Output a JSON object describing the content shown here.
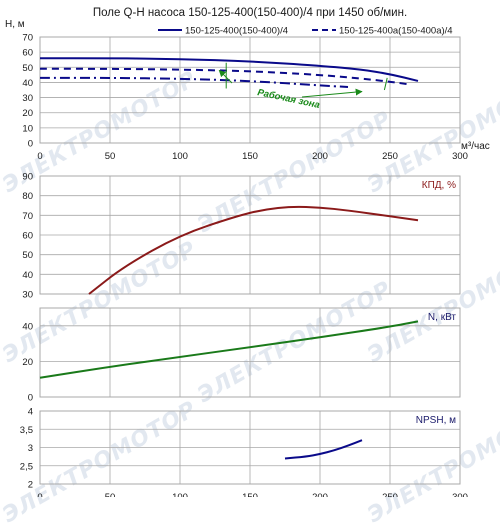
{
  "watermark": "ЭЛЕКТРОМОТОР",
  "chart_data": [
    {
      "type": "line",
      "title": "Поле Q-H насоса 150-125-400(150-400)/4 при 1450 об/мин.",
      "ylabel": "H, м",
      "xlabel": "м³/час",
      "xlim": [
        0,
        300
      ],
      "ylim": [
        0,
        70
      ],
      "xticks": [
        0,
        50,
        100,
        150,
        200,
        250,
        300
      ],
      "yticks": [
        0,
        10,
        20,
        30,
        40,
        50,
        60,
        70
      ],
      "grid": true,
      "legend_position": "top",
      "series": [
        {
          "name": "150-125-400(150-400)/4",
          "style": "solid",
          "color": "#0a0a8a",
          "x": [
            0,
            50,
            100,
            150,
            200,
            230,
            250,
            270
          ],
          "y": [
            56,
            56,
            55.5,
            54,
            51,
            48.5,
            45.5,
            41
          ]
        },
        {
          "name": "150-125-400a(150-400a)/4",
          "style": "dashed",
          "color": "#0a0a8a",
          "x": [
            0,
            50,
            100,
            150,
            200,
            230,
            250,
            265
          ],
          "y": [
            49,
            49,
            48.5,
            47.5,
            45,
            42.5,
            40.5,
            38.5
          ]
        },
        {
          "name": "",
          "style": "dashdot",
          "color": "#0a0a8a",
          "x": [
            0,
            50,
            100,
            150,
            200,
            220
          ],
          "y": [
            43,
            43,
            42.5,
            41,
            38,
            37
          ]
        }
      ],
      "annotation": {
        "text": "Рабочая зона",
        "color": "#1a8a1a",
        "left_line": {
          "x": [
            133,
            133
          ],
          "y": [
            53,
            36
          ]
        },
        "right_line": {
          "x": [
            248,
            246
          ],
          "y": [
            43,
            35
          ]
        },
        "center": {
          "x": 155,
          "y": 37
        },
        "arrow_left_to": {
          "x": 128,
          "y": 48
        },
        "arrow_right_to": {
          "x": 230,
          "y": 34
        }
      }
    },
    {
      "type": "line",
      "title": "",
      "ylabel": "КПД, %",
      "xlim": [
        0,
        300
      ],
      "ylim": [
        30,
        90
      ],
      "yticks": [
        30,
        40,
        50,
        60,
        70,
        80,
        90
      ],
      "grid": true,
      "series": [
        {
          "name": "",
          "color": "#8b1a1a",
          "x": [
            35,
            60,
            100,
            140,
            160,
            180,
            200,
            220,
            250,
            270
          ],
          "y": [
            30,
            44,
            60,
            69.5,
            73,
            74.5,
            74,
            72.5,
            69.5,
            67.5
          ]
        }
      ]
    },
    {
      "type": "line",
      "title": "",
      "ylabel": "N, кВт",
      "xlim": [
        0,
        300
      ],
      "ylim": [
        0,
        50
      ],
      "yticks": [
        0,
        20,
        40
      ],
      "grid": true,
      "series": [
        {
          "name": "",
          "color": "#1a7a1a",
          "x": [
            0,
            50,
            100,
            150,
            200,
            250,
            270
          ],
          "y": [
            10.8,
            17,
            22.5,
            28,
            33.5,
            39.5,
            42.5
          ]
        }
      ]
    },
    {
      "type": "line",
      "title": "",
      "ylabel": "NPSH, м",
      "xlabel": "",
      "xlim": [
        0,
        300
      ],
      "ylim": [
        2,
        4
      ],
      "xticks": [
        0,
        50,
        100,
        150,
        200,
        250,
        300
      ],
      "yticks": [
        2,
        2.5,
        3,
        3.5,
        4
      ],
      "grid": true,
      "series": [
        {
          "name": "",
          "color": "#0a0a8a",
          "x": [
            175,
            190,
            200,
            210,
            220,
            230
          ],
          "y": [
            2.7,
            2.75,
            2.82,
            2.92,
            3.05,
            3.2
          ]
        }
      ]
    }
  ]
}
